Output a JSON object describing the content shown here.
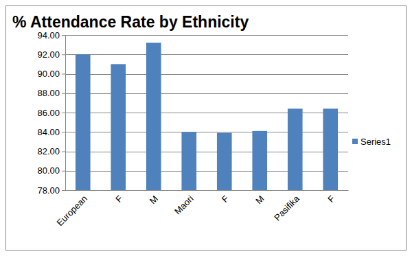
{
  "chart_data": {
    "type": "bar",
    "title": "% Attendance Rate by Ethnicity",
    "categories": [
      "European",
      "F",
      "M",
      "Maori",
      "F",
      "M",
      "Pasifika",
      "F"
    ],
    "series": [
      {
        "name": "Series1",
        "color": "#4f81bd",
        "values": [
          92.0,
          91.0,
          93.2,
          84.0,
          83.9,
          84.1,
          86.4,
          86.4
        ]
      }
    ],
    "ylim": [
      78,
      94
    ],
    "yticks": [
      {
        "value": 78,
        "label": "78.00"
      },
      {
        "value": 80,
        "label": "80.00"
      },
      {
        "value": 82,
        "label": "82.00"
      },
      {
        "value": 84,
        "label": "84.00"
      },
      {
        "value": 86,
        "label": "86.00"
      },
      {
        "value": 88,
        "label": "88.00"
      },
      {
        "value": 90,
        "label": "90.00"
      },
      {
        "value": 92,
        "label": "92.00"
      },
      {
        "value": 94,
        "label": "94.00"
      }
    ],
    "grid": true,
    "legend": "right"
  }
}
